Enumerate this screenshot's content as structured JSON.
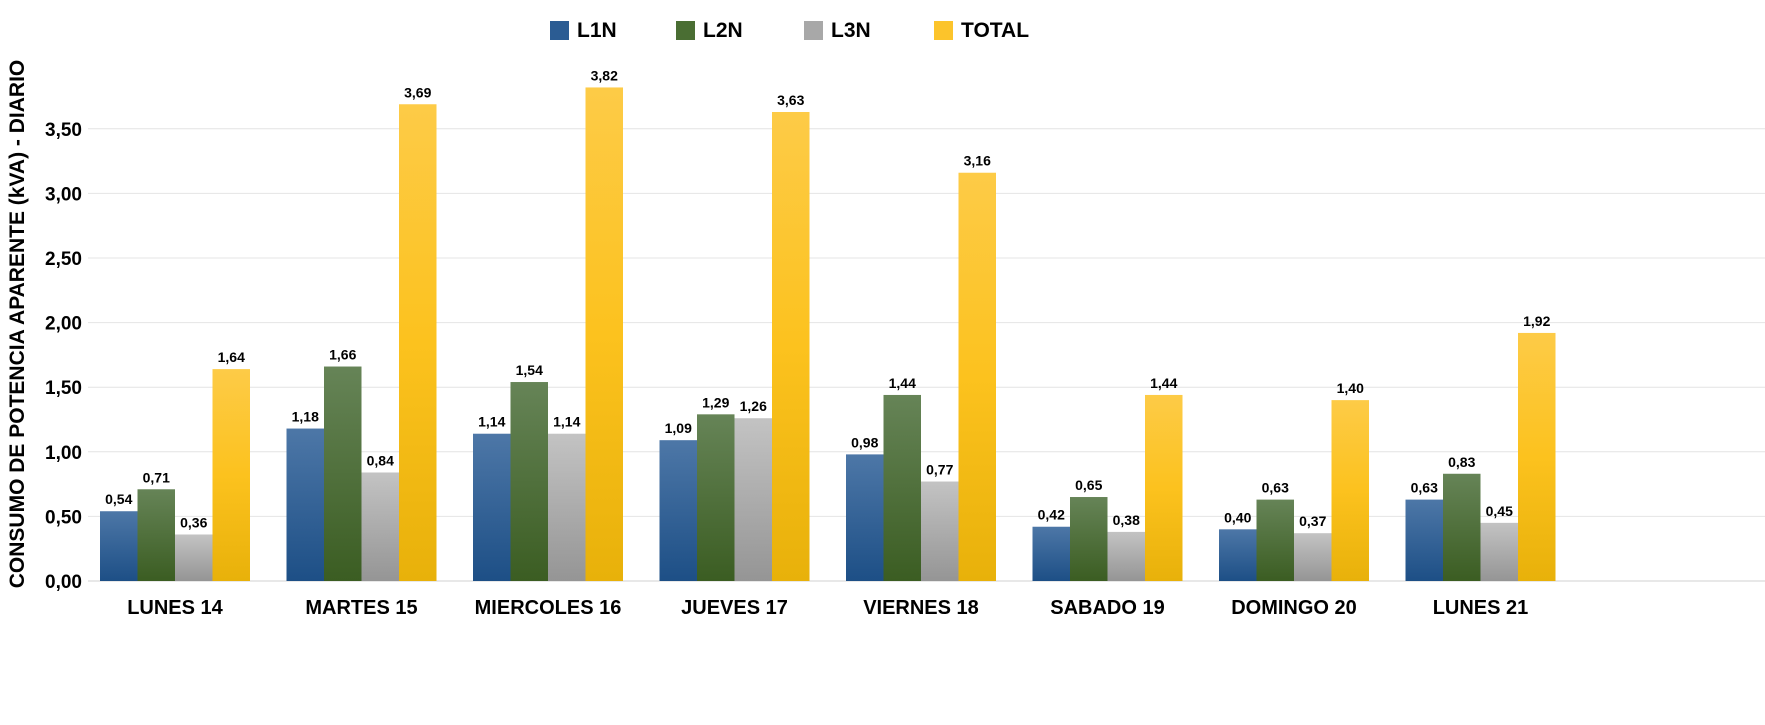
{
  "chart_data": {
    "type": "bar",
    "title": "",
    "xlabel": "",
    "ylabel": "CONSUMO DE POTENCIA APARENTE (kVA) - DIARIO",
    "ylim": [
      0,
      4
    ],
    "yticks": [
      "0,00",
      "0,50",
      "1,00",
      "1,50",
      "2,00",
      "2,50",
      "3,00",
      "3,50"
    ],
    "grid": true,
    "legend_position": "top-center",
    "categories": [
      "LUNES 14",
      "MARTES 15",
      "MIERCOLES 16",
      "JUEVES 17",
      "VIERNES 18",
      "SABADO 19",
      "DOMINGO 20",
      "LUNES 21"
    ],
    "series": [
      {
        "name": "L1N",
        "color": "#2b5c93",
        "values": [
          0.54,
          1.18,
          1.14,
          1.09,
          0.98,
          0.42,
          0.4,
          0.63
        ],
        "labels": [
          "0,54",
          "1,18",
          "1,14",
          "1,09",
          "0,98",
          "0,42",
          "0,40",
          "0,63"
        ]
      },
      {
        "name": "L2N",
        "color": "#4a6e33",
        "values": [
          0.71,
          1.66,
          1.54,
          1.29,
          1.44,
          0.65,
          0.63,
          0.83
        ],
        "labels": [
          "0,71",
          "1,66",
          "1,54",
          "1,29",
          "1,44",
          "0,65",
          "0,63",
          "0,83"
        ]
      },
      {
        "name": "L3N",
        "color": "#a8a8a8",
        "values": [
          0.36,
          0.84,
          1.14,
          1.26,
          0.77,
          0.38,
          0.37,
          0.45
        ],
        "labels": [
          "0,36",
          "0,84",
          "1,14",
          "1,26",
          "0,77",
          "0,38",
          "0,37",
          "0,45"
        ]
      },
      {
        "name": "TOTAL",
        "color": "#fcc42b",
        "values": [
          1.64,
          3.69,
          3.82,
          3.63,
          3.16,
          1.44,
          1.4,
          1.92
        ],
        "labels": [
          "1,64",
          "3,69",
          "3,82",
          "3,63",
          "3,16",
          "1,44",
          "1,40",
          "1,92"
        ]
      }
    ]
  }
}
